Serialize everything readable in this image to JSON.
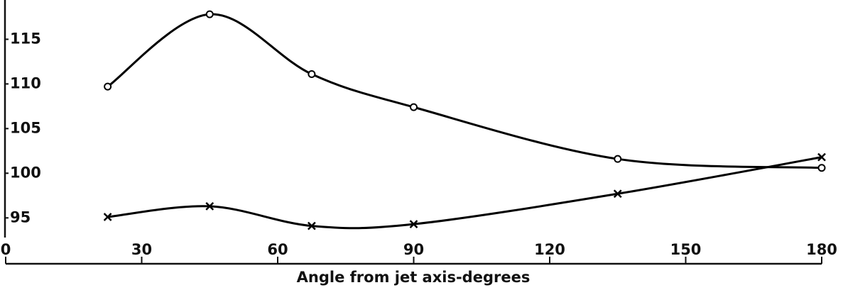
{
  "chart_data": {
    "type": "line",
    "xlabel": "Angle from jet axis-degrees",
    "x": [
      22.5,
      45,
      67.5,
      90,
      135,
      180
    ],
    "series": [
      {
        "color": "#000000",
        "marker": "o",
        "values": [
          109.7,
          117.8,
          111.1,
          107.4,
          101.6,
          100.6
        ]
      },
      {
        "color": "#000000",
        "marker": "x",
        "values": [
          95.1,
          96.3,
          94.1,
          94.3,
          97.7,
          101.8
        ]
      }
    ],
    "xlim": [
      0,
      180
    ],
    "xticks": [
      0,
      30,
      60,
      90,
      120,
      150,
      180
    ],
    "ylim": [
      92.8,
      119.4
    ],
    "yticks": [
      95,
      100,
      105,
      110,
      115
    ],
    "smooth": true
  }
}
